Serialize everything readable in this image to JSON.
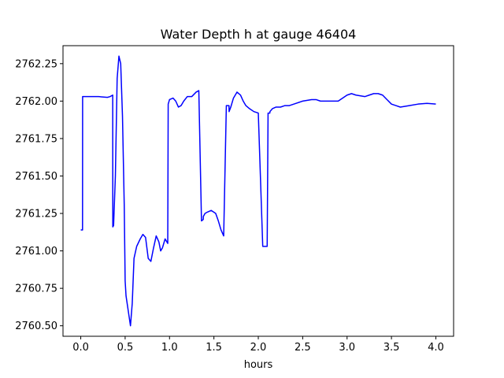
{
  "chart_data": {
    "type": "line",
    "title": "Water Depth h at gauge 46404",
    "xlabel": "hours",
    "ylabel": "",
    "xlim": [
      -0.2,
      4.2
    ],
    "ylim": [
      2760.43,
      2762.37
    ],
    "xticks": [
      0.0,
      0.5,
      1.0,
      1.5,
      2.0,
      2.5,
      3.0,
      3.5,
      4.0
    ],
    "xtick_labels": [
      "0.0",
      "0.5",
      "1.0",
      "1.5",
      "2.0",
      "2.5",
      "3.0",
      "3.5",
      "4.0"
    ],
    "yticks": [
      2760.5,
      2760.75,
      2761.0,
      2761.25,
      2761.5,
      2761.75,
      2762.0,
      2762.25
    ],
    "ytick_labels": [
      "2760.50",
      "2760.75",
      "2761.00",
      "2761.25",
      "2761.50",
      "2761.75",
      "2762.00",
      "2762.25"
    ],
    "grid": false,
    "series": [
      {
        "color": "#0000ff",
        "x": [
          0.0,
          0.02,
          0.021,
          0.1,
          0.2,
          0.3,
          0.33,
          0.36,
          0.361,
          0.37,
          0.39,
          0.41,
          0.43,
          0.45,
          0.47,
          0.49,
          0.5,
          0.51,
          0.53,
          0.56,
          0.58,
          0.6,
          0.63,
          0.67,
          0.7,
          0.73,
          0.76,
          0.79,
          0.82,
          0.85,
          0.88,
          0.9,
          0.92,
          0.95,
          0.98,
          0.985,
          1.0,
          1.04,
          1.07,
          1.1,
          1.13,
          1.16,
          1.2,
          1.25,
          1.3,
          1.33,
          1.36,
          1.38,
          1.381,
          1.4,
          1.43,
          1.47,
          1.52,
          1.55,
          1.58,
          1.61,
          1.64,
          1.67,
          1.671,
          1.69,
          1.72,
          1.76,
          1.8,
          1.83,
          1.86,
          1.9,
          1.95,
          2.0,
          2.05,
          2.1,
          2.11,
          2.13,
          2.131,
          2.16,
          2.2,
          2.25,
          2.3,
          2.35,
          2.4,
          2.5,
          2.6,
          2.65,
          2.7,
          2.8,
          2.9,
          3.0,
          3.05,
          3.1,
          3.2,
          3.25,
          3.3,
          3.35,
          3.4,
          3.45,
          3.5,
          3.55,
          3.6,
          3.7,
          3.8,
          3.9,
          4.0
        ],
        "y": [
          2761.14,
          2761.14,
          2762.03,
          2762.03,
          2762.03,
          2762.025,
          2762.03,
          2762.04,
          2761.16,
          2761.17,
          2761.5,
          2762.15,
          2762.3,
          2762.25,
          2761.9,
          2761.3,
          2760.8,
          2760.7,
          2760.62,
          2760.5,
          2760.65,
          2760.95,
          2761.03,
          2761.08,
          2761.11,
          2761.09,
          2760.95,
          2760.93,
          2761.02,
          2761.1,
          2761.06,
          2761.0,
          2761.02,
          2761.08,
          2761.05,
          2761.98,
          2762.01,
          2762.02,
          2762.0,
          2761.96,
          2761.97,
          2762.0,
          2762.03,
          2762.03,
          2762.06,
          2762.07,
          2761.2,
          2761.21,
          2761.23,
          2761.25,
          2761.26,
          2761.27,
          2761.25,
          2761.2,
          2761.14,
          2761.1,
          2761.97,
          2761.97,
          2761.93,
          2761.96,
          2762.02,
          2762.06,
          2762.04,
          2762.0,
          2761.97,
          2761.95,
          2761.93,
          2761.92,
          2761.03,
          2761.03,
          2761.92,
          2761.92,
          2761.93,
          2761.95,
          2761.96,
          2761.96,
          2761.97,
          2761.97,
          2761.98,
          2762.0,
          2762.01,
          2762.01,
          2762.0,
          2762.0,
          2762.0,
          2762.04,
          2762.05,
          2762.04,
          2762.03,
          2762.04,
          2762.05,
          2762.05,
          2762.04,
          2762.01,
          2761.98,
          2761.97,
          2761.96,
          2761.97,
          2761.98,
          2761.985,
          2761.98
        ]
      }
    ]
  }
}
